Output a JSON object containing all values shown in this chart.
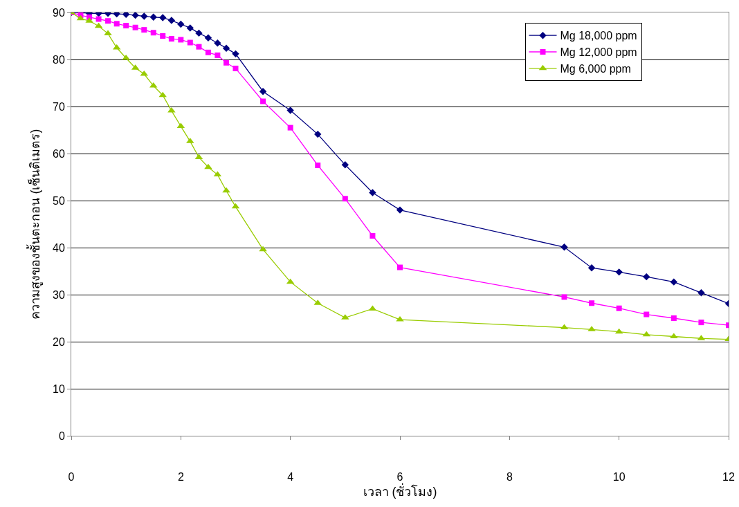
{
  "chart_data": {
    "type": "line",
    "xlabel": "เวลา (ชั่วโมง)",
    "ylabel": "ความสูงของชั้นตะกอน (เซ็นติเมตร)",
    "x": [
      0,
      0.17,
      0.33,
      0.5,
      0.67,
      0.83,
      1,
      1.17,
      1.33,
      1.5,
      1.67,
      1.83,
      2,
      2.17,
      2.33,
      2.5,
      2.67,
      2.83,
      3,
      3.5,
      4,
      4.5,
      5,
      5.5,
      6,
      9,
      9.5,
      10,
      10.5,
      11,
      11.5,
      12
    ],
    "series": [
      {
        "name": "Mg 18,000 ppm",
        "color": "#000080",
        "marker": "diamond",
        "values": [
          90,
          90,
          89.8,
          89.8,
          89.8,
          89.7,
          89.6,
          89.4,
          89.2,
          89,
          88.9,
          88.3,
          87.5,
          86.7,
          85.6,
          84.6,
          83.5,
          82.4,
          81.2,
          73.2,
          69.2,
          64.1,
          57.6,
          51.7,
          48,
          40.1,
          35.7,
          34.8,
          33.8,
          32.7,
          30.4,
          28.1
        ]
      },
      {
        "name": "Mg 12,000 ppm",
        "color": "#ff00ff",
        "marker": "square",
        "values": [
          90,
          89.4,
          89,
          88.6,
          88.2,
          87.6,
          87.2,
          86.8,
          86.3,
          85.7,
          85,
          84.4,
          84.2,
          83.6,
          82.7,
          81.5,
          80.9,
          79.3,
          78.1,
          71.1,
          65.5,
          57.5,
          50.4,
          42.5,
          35.8,
          29.5,
          28.2,
          27.1,
          25.8,
          25,
          24.1,
          23.5
        ]
      },
      {
        "name": "Mg 6,000 ppm",
        "color": "#99cc00",
        "marker": "triangle",
        "values": [
          90,
          88.7,
          88.2,
          87.1,
          85.5,
          82.5,
          80.3,
          78.2,
          76.9,
          74.4,
          72.4,
          69.1,
          65.8,
          62.6,
          59.2,
          57.1,
          55.5,
          52.1,
          48.7,
          39.6,
          32.7,
          28.2,
          25.1,
          27,
          24.7,
          23,
          22.6,
          22.1,
          21.5,
          21.1,
          20.7,
          20.5
        ]
      }
    ],
    "xlim": [
      0,
      12
    ],
    "xticks": [
      0,
      2,
      4,
      6,
      8,
      10,
      12
    ],
    "ylim": [
      0,
      90
    ],
    "yticks": [
      0,
      10,
      20,
      30,
      40,
      50,
      60,
      70,
      80,
      90
    ],
    "grid": "y",
    "legend": "top right",
    "line_style": "solid"
  }
}
